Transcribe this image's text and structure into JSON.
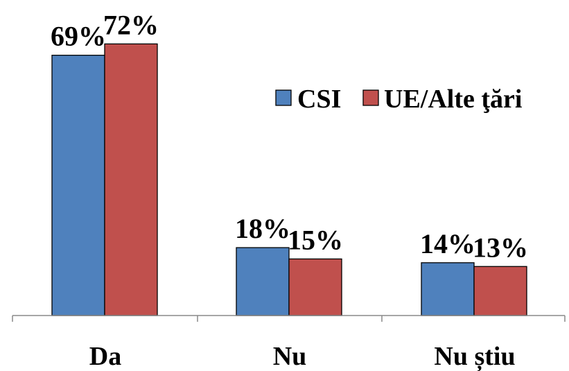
{
  "chart_data": {
    "type": "bar",
    "title": "",
    "xlabel": "",
    "ylabel": "",
    "categories": [
      "Da",
      "Nu",
      "Nu știu"
    ],
    "series": [
      {
        "name": "CSI",
        "values": [
          69,
          18,
          14
        ],
        "labels": [
          "69%",
          "18%",
          "14%"
        ],
        "color": "#4F81BD"
      },
      {
        "name": "UE/Alte ţări",
        "values": [
          72,
          15,
          13
        ],
        "labels": [
          "72%",
          "15%",
          "13%"
        ],
        "color": "#C0504D"
      }
    ],
    "ylim": [
      0,
      100
    ],
    "grid": false,
    "y_axis_visible": false,
    "legend_position": "right",
    "data_labels": true
  }
}
